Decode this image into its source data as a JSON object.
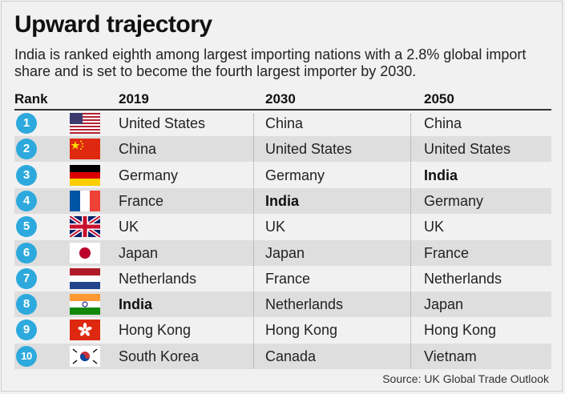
{
  "title": "Upward trajectory",
  "subtitle": "India is ranked eighth among largest importing nations with a 2.8% global import share and is set to become the fourth largest importer by 2030.",
  "source": "Source: UK Global Trade Outlook",
  "colors": {
    "badge": "#2da9dd",
    "shade": "#dedede"
  },
  "chart_data": {
    "type": "table",
    "title": "Upward trajectory",
    "columns": [
      "Rank",
      "2019",
      "2030",
      "2050"
    ],
    "highlight": "India",
    "rows": [
      {
        "rank": "1",
        "flag": "united-states-flag-icon",
        "y2019": "United States",
        "y2030": "China",
        "y2050": "China"
      },
      {
        "rank": "2",
        "flag": "china-flag-icon",
        "y2019": "China",
        "y2030": "United States",
        "y2050": "United States"
      },
      {
        "rank": "3",
        "flag": "germany-flag-icon",
        "y2019": "Germany",
        "y2030": "Germany",
        "y2050": "India"
      },
      {
        "rank": "4",
        "flag": "france-flag-icon",
        "y2019": "France",
        "y2030": "India",
        "y2050": "Germany"
      },
      {
        "rank": "5",
        "flag": "uk-flag-icon",
        "y2019": "UK",
        "y2030": "UK",
        "y2050": "UK"
      },
      {
        "rank": "6",
        "flag": "japan-flag-icon",
        "y2019": "Japan",
        "y2030": "Japan",
        "y2050": "France"
      },
      {
        "rank": "7",
        "flag": "netherlands-flag-icon",
        "y2019": "Netherlands",
        "y2030": "France",
        "y2050": "Netherlands"
      },
      {
        "rank": "8",
        "flag": "india-flag-icon",
        "y2019": "India",
        "y2030": "Netherlands",
        "y2050": "Japan"
      },
      {
        "rank": "9",
        "flag": "hong-kong-flag-icon",
        "y2019": "Hong Kong",
        "y2030": "Hong Kong",
        "y2050": "Hong Kong"
      },
      {
        "rank": "10",
        "flag": "south-korea-flag-icon",
        "y2019": "South Korea",
        "y2030": "Canada",
        "y2050": "Vietnam"
      }
    ]
  }
}
